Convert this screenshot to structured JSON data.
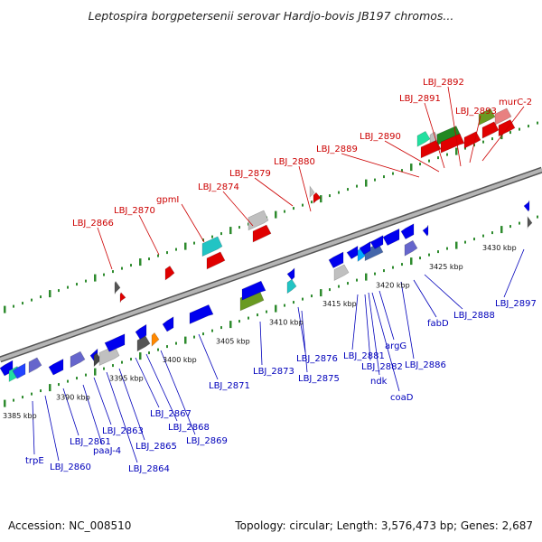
{
  "title": "Leptospira borgpetersenii serovar Hardjo-bovis JB197 chromos...",
  "footer": {
    "accession": "Accession: NC_008510",
    "summary": "Topology: circular; Length: 3,576,473 bp; Genes: 2,687"
  },
  "colors": {
    "backbone": "#8c8c8c",
    "tick": "#2e8b2e",
    "label_top": "#cc0000",
    "label_bottom": "#0000bb",
    "scale_text": "#111111"
  },
  "scale_labels": [
    {
      "text": "3385 kbp",
      "pos": 3385
    },
    {
      "text": "3390 kbp",
      "pos": 3390
    },
    {
      "text": "3395 kbp",
      "pos": 3395
    },
    {
      "text": "3400 kbp",
      "pos": 3400
    },
    {
      "text": "3405 kbp",
      "pos": 3405
    },
    {
      "text": "3410 kbp",
      "pos": 3410
    },
    {
      "text": "3415 kbp",
      "pos": 3415
    },
    {
      "text": "3420 kbp",
      "pos": 3420
    },
    {
      "text": "3425 kbp",
      "pos": 3425
    },
    {
      "text": "3430 kbp",
      "pos": 3430
    }
  ],
  "labels_top": [
    {
      "text": "LBJ_2866"
    },
    {
      "text": "LBJ_2870"
    },
    {
      "text": "gpmI"
    },
    {
      "text": "LBJ_2874"
    },
    {
      "text": "LBJ_2879"
    },
    {
      "text": "LBJ_2880"
    },
    {
      "text": "LBJ_2889"
    },
    {
      "text": "LBJ_2890"
    },
    {
      "text": "LBJ_2891"
    },
    {
      "text": "LBJ_2892"
    },
    {
      "text": "LBJ_2893"
    },
    {
      "text": "murC-2"
    }
  ],
  "labels_bottom": [
    {
      "text": "trpE"
    },
    {
      "text": "LBJ_2860"
    },
    {
      "text": "LBJ_2861"
    },
    {
      "text": "paaJ-4"
    },
    {
      "text": "LBJ_2863"
    },
    {
      "text": "LBJ_2864"
    },
    {
      "text": "LBJ_2865"
    },
    {
      "text": "LBJ_2867"
    },
    {
      "text": "LBJ_2868"
    },
    {
      "text": "LBJ_2869"
    },
    {
      "text": "LBJ_2871"
    },
    {
      "text": "LBJ_2873"
    },
    {
      "text": "LBJ_2876"
    },
    {
      "text": "LBJ_2875"
    },
    {
      "text": "LBJ_2881"
    },
    {
      "text": "LBJ_2882"
    },
    {
      "text": "ndk"
    },
    {
      "text": "argG"
    },
    {
      "text": "coaD"
    },
    {
      "text": "LBJ_2886"
    },
    {
      "text": "fabD"
    },
    {
      "text": "LBJ_2888"
    },
    {
      "text": "LBJ_2897"
    }
  ]
}
